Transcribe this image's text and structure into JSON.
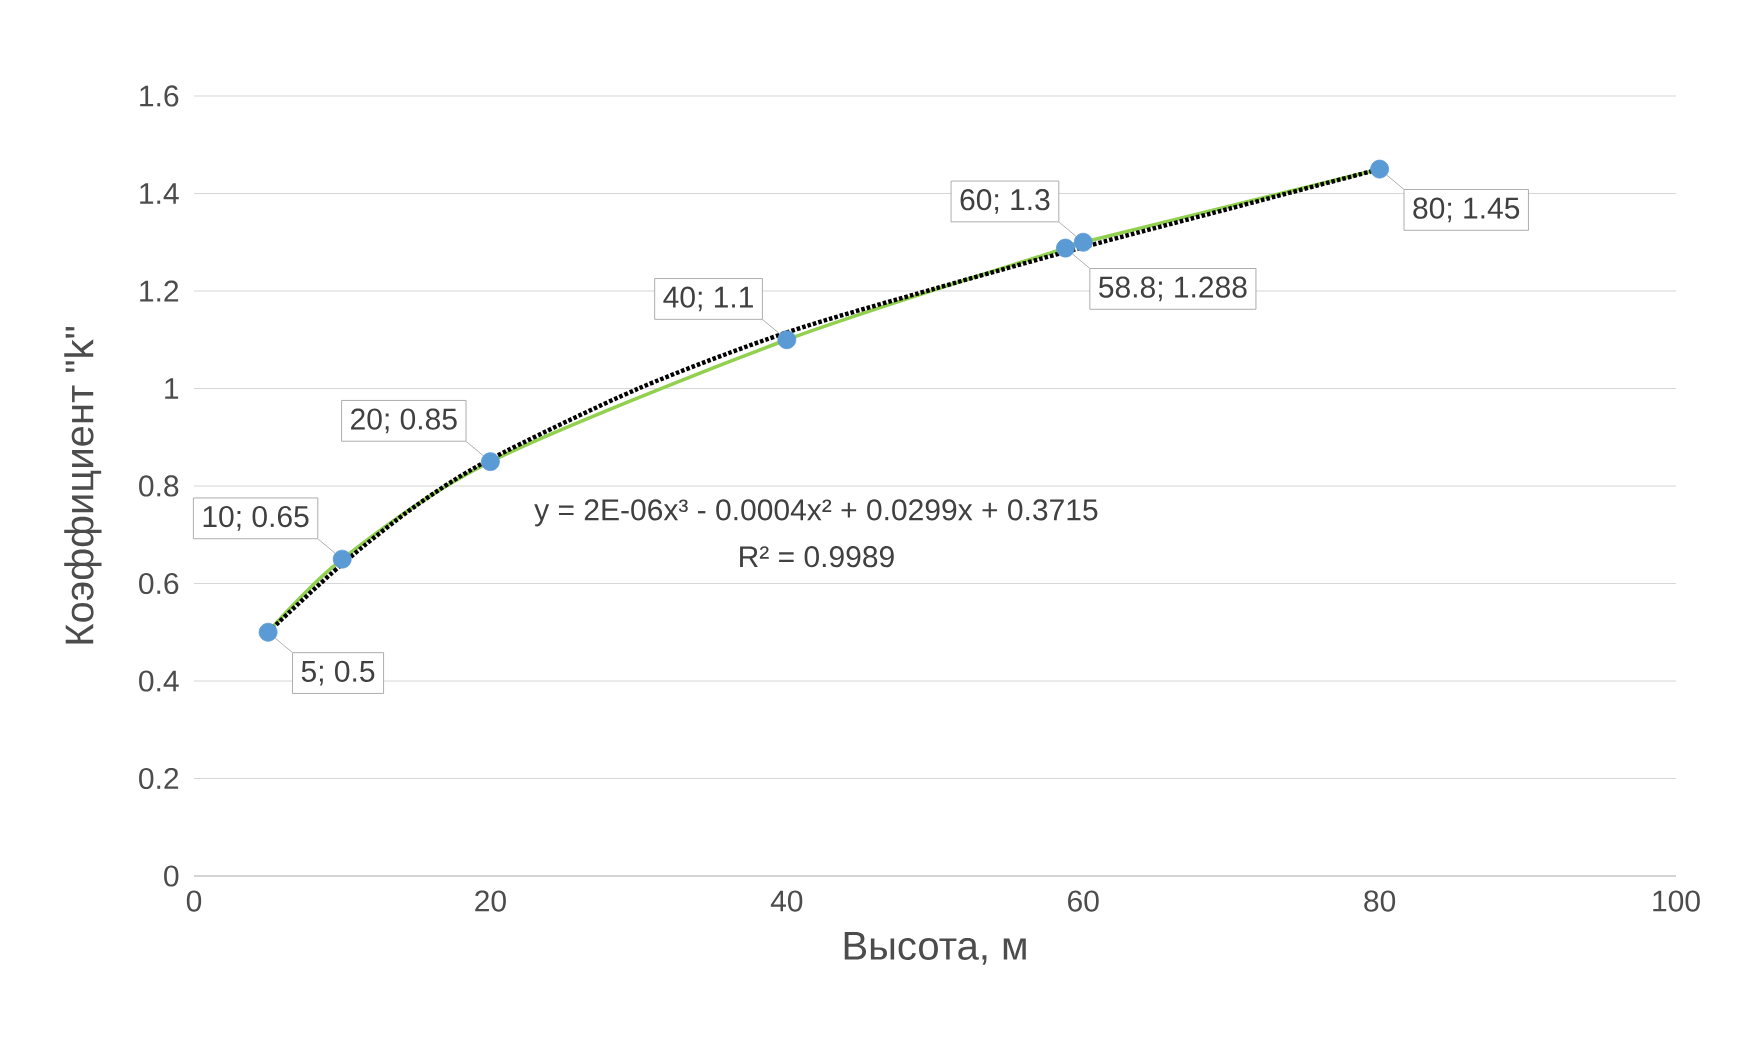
{
  "chart_data": {
    "type": "scatter",
    "xlabel": "Высота, м",
    "ylabel": "Коэффициент \"k\"",
    "xlim": [
      0,
      100
    ],
    "xticks": [
      0,
      20,
      40,
      60,
      80,
      100
    ],
    "ylim": [
      0,
      1.6
    ],
    "yticks": [
      0,
      0.2,
      0.4,
      0.6,
      0.8,
      1,
      1.2,
      1.4,
      1.6
    ],
    "grid": "y",
    "series": [
      {
        "type": "line",
        "color": "#92d050",
        "line_style": "solid",
        "x": [
          5,
          10,
          20,
          40,
          58.8,
          60,
          80
        ],
        "values": [
          0.5,
          0.65,
          0.85,
          1.1,
          1.288,
          1.3,
          1.45
        ]
      },
      {
        "type": "line",
        "color": "#000000",
        "line_style": "dotted",
        "x": [
          5,
          10,
          15,
          20,
          30,
          40,
          50,
          60,
          70,
          80
        ],
        "values": [
          0.5,
          0.64,
          0.76,
          0.855,
          1.0,
          1.115,
          1.205,
          1.29,
          1.37,
          1.45
        ]
      },
      {
        "color": "#5b9bd5",
        "marker": "circle",
        "x": [
          5,
          10,
          20,
          40,
          58.8,
          60,
          80
        ],
        "values": [
          0.5,
          0.65,
          0.85,
          1.1,
          1.288,
          1.3,
          1.45
        ],
        "value_labels": [
          "5; 0.5",
          "10; 0.65",
          "20; 0.85",
          "40; 1.1",
          "58.8; 1.288",
          "60; 1.3",
          "80; 1.45"
        ]
      }
    ],
    "annotations": [
      "y = 2E-06x³ - 0.0004x² + 0.0299x + 0.3715",
      "R² = 0.9989"
    ]
  }
}
